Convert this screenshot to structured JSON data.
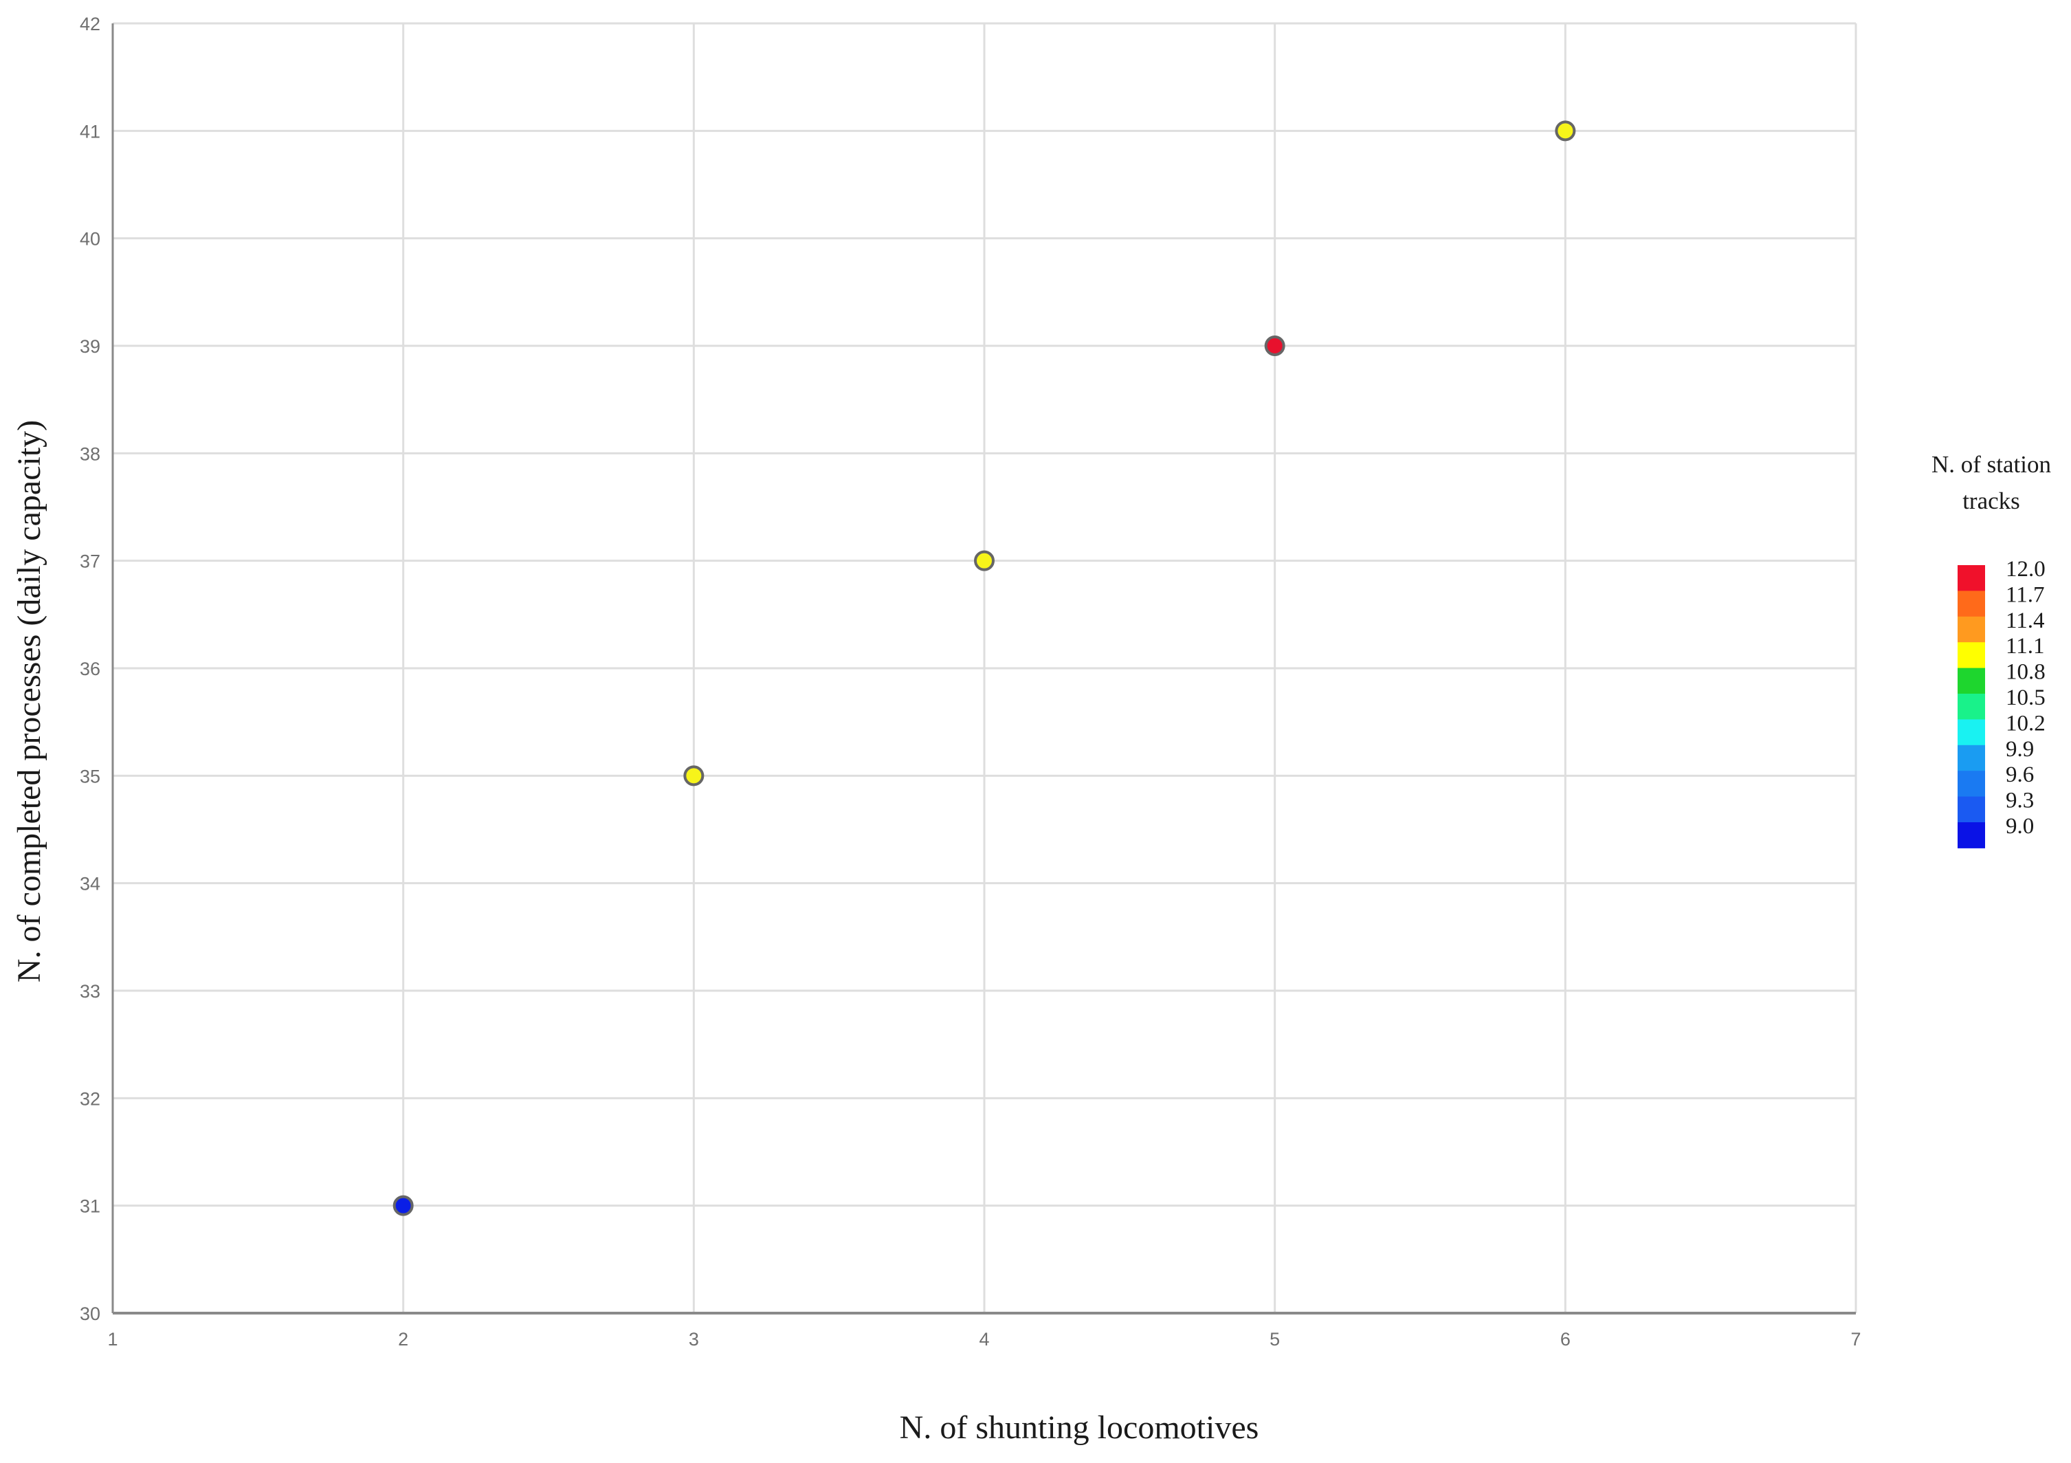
{
  "chart_data": {
    "type": "scatter",
    "title": "",
    "xlabel": "N. of shunting locomotives",
    "ylabel": "N. of completed processes (daily capacity)",
    "xlim": [
      1,
      7
    ],
    "ylim": [
      30,
      42
    ],
    "xticks": [
      1,
      2,
      3,
      4,
      5,
      6,
      7
    ],
    "yticks": [
      30,
      31,
      32,
      33,
      34,
      35,
      36,
      37,
      38,
      39,
      40,
      41,
      42
    ],
    "grid": true,
    "points": [
      {
        "x": 2,
        "y": 31,
        "tracks": 9.0,
        "color": "#0a1ee6"
      },
      {
        "x": 3,
        "y": 35,
        "tracks": 11.1,
        "color": "#f7f41a"
      },
      {
        "x": 4,
        "y": 37,
        "tracks": 11.1,
        "color": "#f7f41a"
      },
      {
        "x": 5,
        "y": 39,
        "tracks": 12.0,
        "color": "#e8112d"
      },
      {
        "x": 6,
        "y": 41,
        "tracks": 11.1,
        "color": "#f7f41a"
      }
    ],
    "legend": {
      "title_lines": [
        "N. of station",
        "tracks"
      ],
      "placement": "right",
      "entries": [
        {
          "label": "12.0",
          "color": "#f0112b"
        },
        {
          "label": "11.7",
          "color": "#ff6a1a"
        },
        {
          "label": "11.4",
          "color": "#ff9a1f"
        },
        {
          "label": "11.1",
          "color": "#ffff00"
        },
        {
          "label": "10.8",
          "color": "#1ed62e"
        },
        {
          "label": "10.5",
          "color": "#19f28a"
        },
        {
          "label": "10.2",
          "color": "#19f2f2"
        },
        {
          "label": "9.9",
          "color": "#1a9cf2"
        },
        {
          "label": "9.6",
          "color": "#1a7af2"
        },
        {
          "label": "9.3",
          "color": "#1a5af2"
        },
        {
          "label": "9.0",
          "color": "#0a12e6"
        }
      ]
    },
    "colors": {
      "grid": "#dedede",
      "axis": "#8a8a8a",
      "marker_edge": "#666666"
    }
  }
}
